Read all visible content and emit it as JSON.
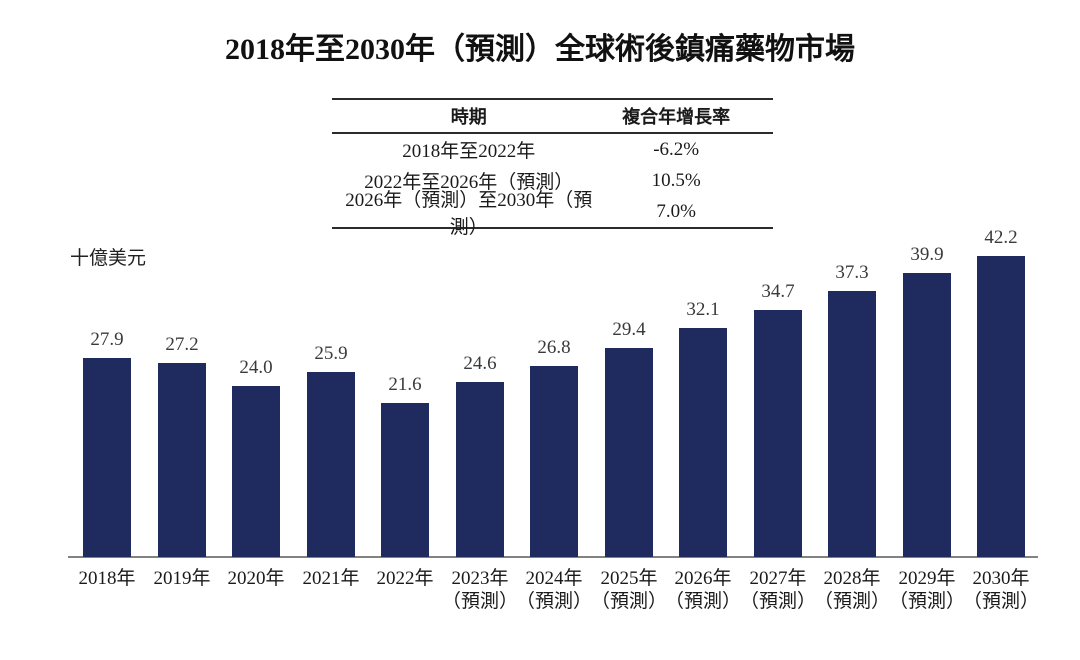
{
  "page_title": "2018年至2030年（預測）全球術後鎮痛藥物市場",
  "cagr_table": {
    "headers": [
      "時期",
      "複合年增長率"
    ],
    "rows": [
      {
        "period": "2018年至2022年",
        "cagr": "-6.2%"
      },
      {
        "period": "2022年至2026年（預測）",
        "cagr": "10.5%"
      },
      {
        "period": "2026年（預測）至2030年（預測）",
        "cagr": "7.0%"
      }
    ]
  },
  "chart_data": {
    "type": "bar",
    "title": "2018年至2030年（預測）全球術後鎮痛藥物市場",
    "ylabel": "十億美元",
    "xlabel": "",
    "categories": [
      "2018年",
      "2019年",
      "2020年",
      "2021年",
      "2022年",
      "2023年",
      "2024年",
      "2025年",
      "2026年",
      "2027年",
      "2028年",
      "2029年",
      "2030年"
    ],
    "category_notes": [
      "",
      "",
      "",
      "",
      "",
      "（預測）",
      "（預測）",
      "（預測）",
      "（預測）",
      "（預測）",
      "（預測）",
      "（預測）",
      "（預測）"
    ],
    "values": [
      27.9,
      27.2,
      24.0,
      25.9,
      21.6,
      24.6,
      26.8,
      29.4,
      32.1,
      34.7,
      37.3,
      39.9,
      42.2
    ],
    "ylim": [
      0,
      45
    ],
    "bar_color": "#1f2a5e",
    "value_label_color": "#3a3a3a",
    "grid": false,
    "legend": false
  }
}
